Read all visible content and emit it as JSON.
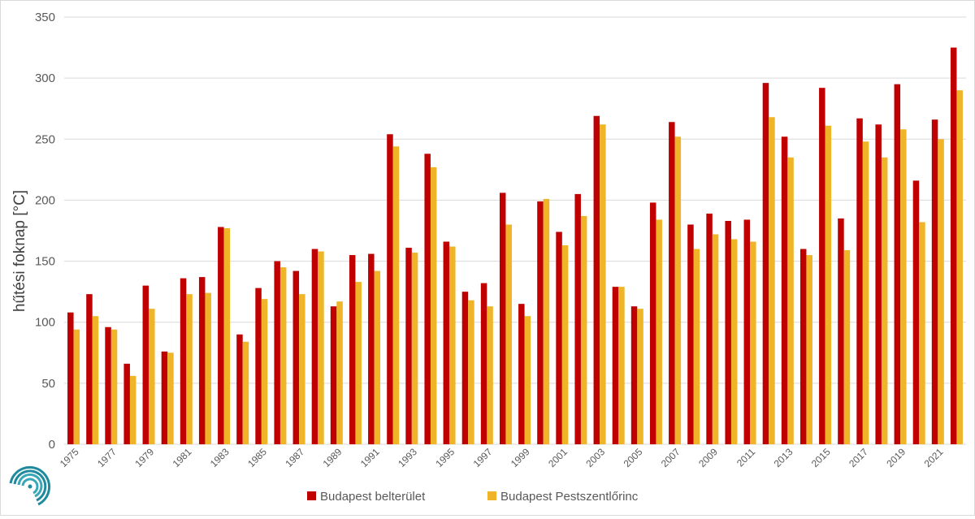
{
  "colors": {
    "series1": "#c00000",
    "series2": "#f0b429",
    "grid": "#d9d9d9",
    "logo": "#1f8a9e"
  },
  "logo": {
    "icon": "swirl-logo-icon"
  },
  "chart_data": {
    "type": "bar",
    "title": "",
    "xlabel": "",
    "ylabel": "hűtési foknap [°C]",
    "ylim": [
      0,
      350
    ],
    "yticks": [
      0,
      50,
      100,
      150,
      200,
      250,
      300,
      350
    ],
    "grid": true,
    "legend_position": "bottom",
    "categories": [
      "1975",
      "1976",
      "1977",
      "1978",
      "1979",
      "1980",
      "1981",
      "1982",
      "1983",
      "1984",
      "1985",
      "1986",
      "1987",
      "1988",
      "1989",
      "1990",
      "1991",
      "1992",
      "1993",
      "1994",
      "1995",
      "1996",
      "1997",
      "1998",
      "1999",
      "2000",
      "2001",
      "2002",
      "2003",
      "2004",
      "2005",
      "2006",
      "2007",
      "2008",
      "2009",
      "2010",
      "2011",
      "2012",
      "2013",
      "2014",
      "2015",
      "2016",
      "2017",
      "2018",
      "2019",
      "2020",
      "2021",
      "2022"
    ],
    "xtick_labels": [
      "1975",
      "",
      "1977",
      "",
      "1979",
      "",
      "1981",
      "",
      "1983",
      "",
      "1985",
      "",
      "1987",
      "",
      "1989",
      "",
      "1991",
      "",
      "1993",
      "",
      "1995",
      "",
      "1997",
      "",
      "1999",
      "",
      "2001",
      "",
      "2003",
      "",
      "2005",
      "",
      "2007",
      "",
      "2009",
      "",
      "2011",
      "",
      "2013",
      "",
      "2015",
      "",
      "2017",
      "",
      "2019",
      "",
      "2021",
      ""
    ],
    "series": [
      {
        "name": "Budapest belterület",
        "values": [
          108,
          123,
          96,
          66,
          130,
          76,
          136,
          137,
          178,
          90,
          128,
          150,
          142,
          160,
          113,
          155,
          156,
          254,
          161,
          238,
          166,
          125,
          132,
          206,
          115,
          199,
          174,
          205,
          269,
          129,
          113,
          198,
          264,
          180,
          189,
          183,
          184,
          296,
          252,
          160,
          292,
          185,
          267,
          262,
          295,
          216,
          266,
          325
        ]
      },
      {
        "name": "Budapest Pestszentlőrinc",
        "values": [
          94,
          105,
          94,
          56,
          111,
          75,
          123,
          124,
          177,
          84,
          119,
          145,
          123,
          158,
          117,
          133,
          142,
          244,
          157,
          227,
          162,
          118,
          113,
          180,
          105,
          201,
          163,
          187,
          262,
          129,
          111,
          184,
          252,
          160,
          172,
          168,
          166,
          268,
          235,
          155,
          261,
          159,
          248,
          235,
          258,
          182,
          250,
          290
        ]
      }
    ]
  }
}
